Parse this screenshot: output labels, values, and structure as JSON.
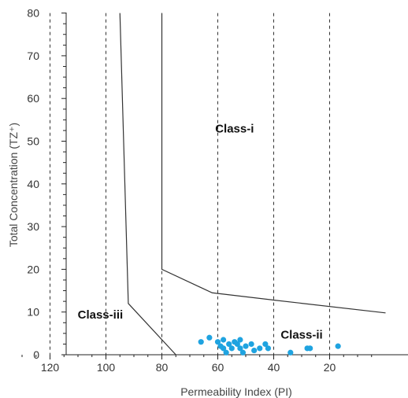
{
  "chart_data": {
    "type": "scatter",
    "title": "",
    "xlabel": "Permeability Index (PI)",
    "ylabel": "Total Concentration (TZ⁺)",
    "x_reversed": true,
    "xlim": [
      130,
      0
    ],
    "ylim": [
      0,
      80
    ],
    "x_ticks": [
      120,
      100,
      80,
      60,
      40,
      20
    ],
    "y_ticks": [
      0,
      10,
      20,
      30,
      40,
      50,
      60,
      70,
      80
    ],
    "x_tick_labels": [
      "120",
      "100",
      "80",
      "60",
      "40",
      "20"
    ],
    "y_tick_labels": [
      "0",
      "10",
      "20",
      "30",
      "40",
      "50",
      "60",
      "70",
      "80"
    ],
    "grid": "vertical dashed lines at each x tick",
    "marker_color": "#1fa3e0",
    "boundaries": [
      {
        "points": [
          [
            95,
            80
          ],
          [
            92,
            12
          ],
          [
            75,
            0
          ]
        ]
      },
      {
        "points": [
          [
            80,
            80
          ],
          [
            80,
            20
          ],
          [
            62,
            14.5
          ],
          [
            40,
            12.8
          ],
          [
            0,
            9.8
          ]
        ]
      }
    ],
    "regions": [
      {
        "label": "Class-i",
        "x": 54,
        "y": 52
      },
      {
        "label": "Class-ii",
        "x": 30,
        "y": 3.8
      },
      {
        "label": "Class-iii",
        "x": 102,
        "y": 8.5
      }
    ],
    "points": [
      {
        "x": 66,
        "y": 3
      },
      {
        "x": 63,
        "y": 4
      },
      {
        "x": 60,
        "y": 3
      },
      {
        "x": 59,
        "y": 2
      },
      {
        "x": 58,
        "y": 3.5
      },
      {
        "x": 58,
        "y": 1.5
      },
      {
        "x": 57,
        "y": 0.5
      },
      {
        "x": 56,
        "y": 2.5
      },
      {
        "x": 55,
        "y": 1.5
      },
      {
        "x": 54,
        "y": 3
      },
      {
        "x": 53,
        "y": 2.5
      },
      {
        "x": 52,
        "y": 3.5
      },
      {
        "x": 52,
        "y": 1.5
      },
      {
        "x": 51,
        "y": 0.5
      },
      {
        "x": 50,
        "y": 2
      },
      {
        "x": 48,
        "y": 2.5
      },
      {
        "x": 47,
        "y": 1
      },
      {
        "x": 45,
        "y": 1.5
      },
      {
        "x": 43,
        "y": 2.5
      },
      {
        "x": 42,
        "y": 1.5
      },
      {
        "x": 34,
        "y": 0.5
      },
      {
        "x": 28,
        "y": 1.5
      },
      {
        "x": 27,
        "y": 1.5
      },
      {
        "x": 17,
        "y": 2
      }
    ]
  }
}
